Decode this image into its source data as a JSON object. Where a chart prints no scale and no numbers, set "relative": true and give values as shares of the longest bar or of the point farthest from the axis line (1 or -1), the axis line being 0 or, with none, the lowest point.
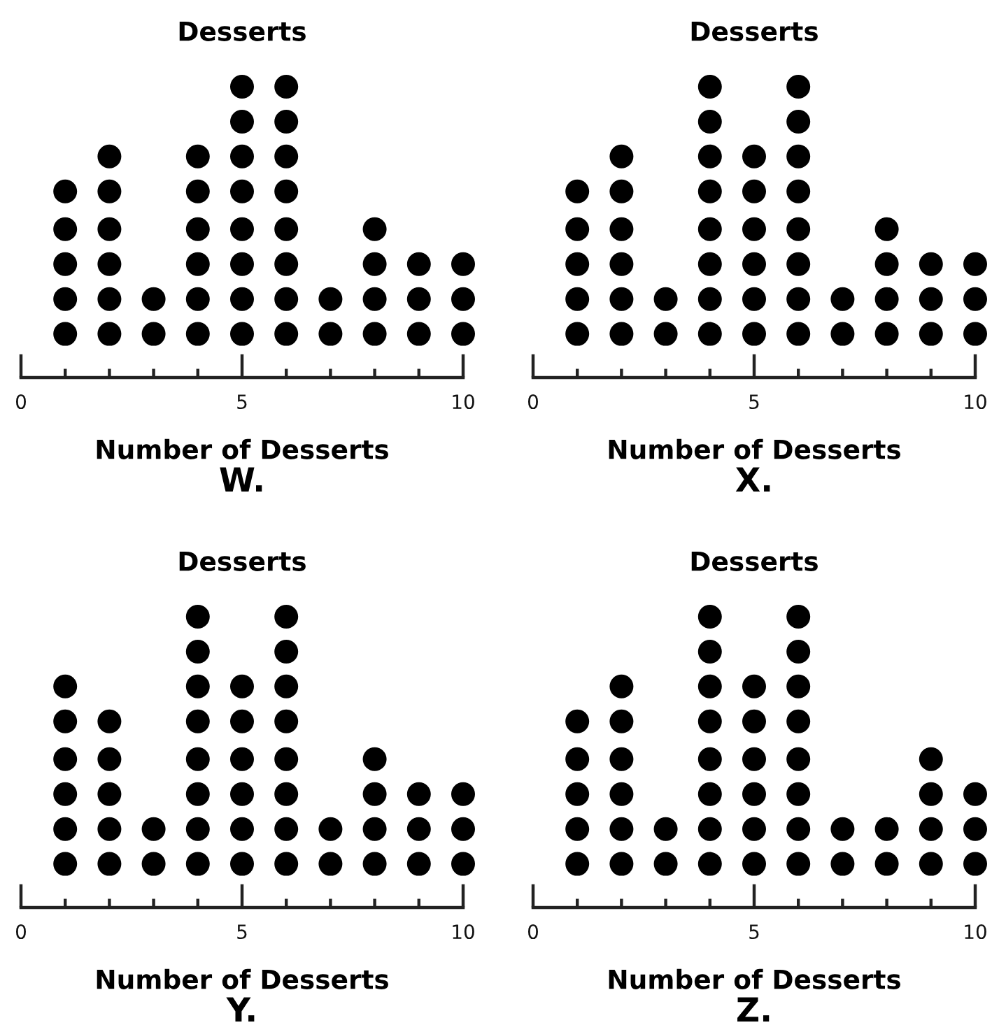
{
  "chart_data": [
    {
      "type": "scatter",
      "title": "Desserts",
      "xlabel": "Number of Desserts",
      "annotations": [
        "W."
      ],
      "relative": true,
      "color": "#000000",
      "marker": "circle",
      "xlim": [
        0,
        10
      ],
      "xticks": [
        0,
        {
          "value": 1,
          "label": null
        },
        {
          "value": 2,
          "label": null
        },
        {
          "value": 3,
          "label": null
        },
        {
          "value": 4,
          "label": null
        },
        5,
        {
          "value": 6,
          "label": null
        },
        {
          "value": 7,
          "label": null
        },
        {
          "value": 8,
          "label": null
        },
        {
          "value": 9,
          "label": null
        },
        10
      ],
      "x": [
        1,
        1,
        1,
        1,
        1,
        2,
        2,
        2,
        2,
        2,
        2,
        3,
        3,
        4,
        4,
        4,
        4,
        4,
        4,
        5,
        5,
        5,
        5,
        5,
        5,
        5,
        5,
        6,
        6,
        6,
        6,
        6,
        6,
        6,
        6,
        7,
        7,
        8,
        8,
        8,
        8,
        9,
        9,
        9,
        10,
        10,
        10
      ],
      "values": [
        0.15,
        0.27,
        0.39,
        0.51,
        0.64,
        0.15,
        0.27,
        0.39,
        0.51,
        0.64,
        0.76,
        0.15,
        0.27,
        0.15,
        0.27,
        0.39,
        0.51,
        0.64,
        0.76,
        0.15,
        0.27,
        0.39,
        0.51,
        0.64,
        0.76,
        0.88,
        1,
        0.15,
        0.27,
        0.39,
        0.51,
        0.64,
        0.76,
        0.88,
        1,
        0.15,
        0.27,
        0.15,
        0.27,
        0.39,
        0.51,
        0.15,
        0.27,
        0.39,
        0.15,
        0.27,
        0.39
      ]
    },
    {
      "type": "scatter",
      "title": "Desserts",
      "xlabel": "Number of Desserts",
      "annotations": [
        "X."
      ],
      "relative": true,
      "color": "#000000",
      "marker": "circle",
      "xlim": [
        0,
        10
      ],
      "xticks": [
        0,
        {
          "value": 1,
          "label": null
        },
        {
          "value": 2,
          "label": null
        },
        {
          "value": 3,
          "label": null
        },
        {
          "value": 4,
          "label": null
        },
        5,
        {
          "value": 6,
          "label": null
        },
        {
          "value": 7,
          "label": null
        },
        {
          "value": 8,
          "label": null
        },
        {
          "value": 9,
          "label": null
        },
        10
      ],
      "x": [
        1,
        1,
        1,
        1,
        1,
        2,
        2,
        2,
        2,
        2,
        2,
        3,
        3,
        4,
        4,
        4,
        4,
        4,
        4,
        4,
        4,
        5,
        5,
        5,
        5,
        5,
        5,
        6,
        6,
        6,
        6,
        6,
        6,
        6,
        6,
        7,
        7,
        8,
        8,
        8,
        8,
        9,
        9,
        9,
        10,
        10,
        10
      ],
      "values": [
        0.15,
        0.27,
        0.39,
        0.51,
        0.64,
        0.15,
        0.27,
        0.39,
        0.51,
        0.64,
        0.76,
        0.15,
        0.27,
        0.15,
        0.27,
        0.39,
        0.51,
        0.64,
        0.76,
        0.88,
        1,
        0.15,
        0.27,
        0.39,
        0.51,
        0.64,
        0.76,
        0.15,
        0.27,
        0.39,
        0.51,
        0.64,
        0.76,
        0.88,
        1,
        0.15,
        0.27,
        0.15,
        0.27,
        0.39,
        0.51,
        0.15,
        0.27,
        0.39,
        0.15,
        0.27,
        0.39
      ]
    },
    {
      "type": "scatter",
      "title": "Desserts",
      "xlabel": "Number of Desserts",
      "annotations": [
        "Y."
      ],
      "relative": true,
      "color": "#000000",
      "marker": "circle",
      "xlim": [
        0,
        10
      ],
      "xticks": [
        0,
        {
          "value": 1,
          "label": null
        },
        {
          "value": 2,
          "label": null
        },
        {
          "value": 3,
          "label": null
        },
        {
          "value": 4,
          "label": null
        },
        5,
        {
          "value": 6,
          "label": null
        },
        {
          "value": 7,
          "label": null
        },
        {
          "value": 8,
          "label": null
        },
        {
          "value": 9,
          "label": null
        },
        10
      ],
      "x": [
        1,
        1,
        1,
        1,
        1,
        1,
        2,
        2,
        2,
        2,
        2,
        3,
        3,
        4,
        4,
        4,
        4,
        4,
        4,
        4,
        4,
        5,
        5,
        5,
        5,
        5,
        5,
        6,
        6,
        6,
        6,
        6,
        6,
        6,
        6,
        7,
        7,
        8,
        8,
        8,
        8,
        9,
        9,
        9,
        10,
        10,
        10
      ],
      "values": [
        0.15,
        0.27,
        0.39,
        0.51,
        0.64,
        0.76,
        0.15,
        0.27,
        0.39,
        0.51,
        0.64,
        0.15,
        0.27,
        0.15,
        0.27,
        0.39,
        0.51,
        0.64,
        0.76,
        0.88,
        1,
        0.15,
        0.27,
        0.39,
        0.51,
        0.64,
        0.76,
        0.15,
        0.27,
        0.39,
        0.51,
        0.64,
        0.76,
        0.88,
        1,
        0.15,
        0.27,
        0.15,
        0.27,
        0.39,
        0.51,
        0.15,
        0.27,
        0.39,
        0.15,
        0.27,
        0.39
      ]
    },
    {
      "type": "scatter",
      "title": "Desserts",
      "xlabel": "Number of Desserts",
      "annotations": [
        "Z."
      ],
      "relative": true,
      "color": "#000000",
      "marker": "circle",
      "xlim": [
        0,
        10
      ],
      "xticks": [
        0,
        {
          "value": 1,
          "label": null
        },
        {
          "value": 2,
          "label": null
        },
        {
          "value": 3,
          "label": null
        },
        {
          "value": 4,
          "label": null
        },
        5,
        {
          "value": 6,
          "label": null
        },
        {
          "value": 7,
          "label": null
        },
        {
          "value": 8,
          "label": null
        },
        {
          "value": 9,
          "label": null
        },
        10
      ],
      "x": [
        1,
        1,
        1,
        1,
        1,
        2,
        2,
        2,
        2,
        2,
        2,
        3,
        3,
        4,
        4,
        4,
        4,
        4,
        4,
        4,
        4,
        5,
        5,
        5,
        5,
        5,
        5,
        6,
        6,
        6,
        6,
        6,
        6,
        6,
        6,
        7,
        7,
        8,
        8,
        9,
        9,
        9,
        9,
        10,
        10,
        10
      ],
      "values": [
        0.15,
        0.27,
        0.39,
        0.51,
        0.64,
        0.15,
        0.27,
        0.39,
        0.51,
        0.64,
        0.76,
        0.15,
        0.27,
        0.15,
        0.27,
        0.39,
        0.51,
        0.64,
        0.76,
        0.88,
        1,
        0.15,
        0.27,
        0.39,
        0.51,
        0.64,
        0.76,
        0.15,
        0.27,
        0.39,
        0.51,
        0.64,
        0.76,
        0.88,
        1,
        0.15,
        0.27,
        0.15,
        0.27,
        0.15,
        0.27,
        0.39,
        0.51,
        0.15,
        0.27,
        0.39
      ]
    }
  ]
}
